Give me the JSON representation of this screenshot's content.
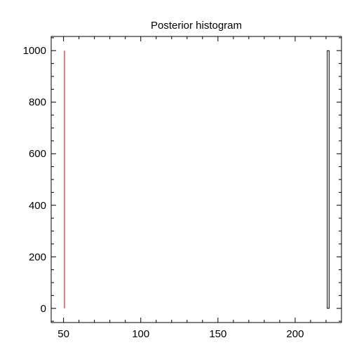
{
  "chart_data": {
    "type": "bar",
    "title": "Posterior histogram",
    "xlabel": "",
    "ylabel": "",
    "xlim": [
      42,
      230
    ],
    "ylim": [
      -55,
      1055
    ],
    "x_ticks": [
      50,
      100,
      150,
      200
    ],
    "y_ticks": [
      0,
      200,
      400,
      600,
      800,
      1000
    ],
    "grid": false,
    "bars": [
      {
        "x0": 220.8,
        "x1": 222.0,
        "value": 1000
      }
    ],
    "reference_lines": [
      {
        "x": 50.6,
        "value": 1000,
        "color": "#cc0000"
      }
    ]
  },
  "colors": {
    "bar_stroke": "#000000",
    "marker_line": "#cc0000",
    "axis": "#000000"
  }
}
